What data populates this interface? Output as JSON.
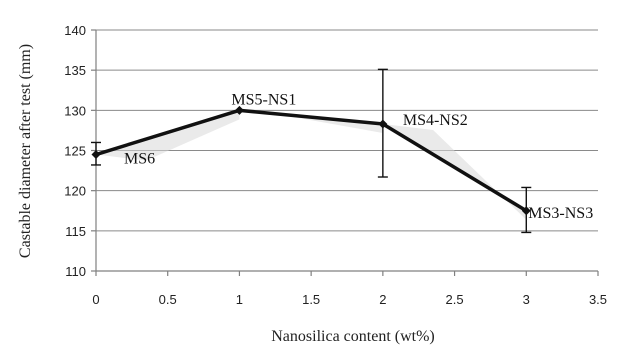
{
  "chart_data": {
    "type": "line",
    "title": "",
    "xlabel": "Nanosilica content (wt%)",
    "ylabel": "Castable diameter after test (mm)",
    "xlim": [
      0,
      3.5
    ],
    "ylim": [
      110,
      140
    ],
    "xticks": [
      "0",
      "0.5",
      "1",
      "1.5",
      "2",
      "2.5",
      "3",
      "3.5"
    ],
    "yticks": [
      "110",
      "115",
      "120",
      "125",
      "130",
      "135",
      "140"
    ],
    "grid": true,
    "series": [
      {
        "points": [
          {
            "x": 0,
            "y": 124.5,
            "err_low": 123.2,
            "err_high": 126.0,
            "label": "MS6"
          },
          {
            "x": 1,
            "y": 130.0,
            "err_low": 130.0,
            "err_high": 130.0,
            "label": "MS5-NS1"
          },
          {
            "x": 2,
            "y": 128.3,
            "err_low": 121.7,
            "err_high": 135.1,
            "label": "MS4-NS2"
          },
          {
            "x": 3,
            "y": 117.5,
            "err_low": 114.8,
            "err_high": 120.4,
            "label": "MS3-NS3"
          }
        ]
      }
    ]
  }
}
